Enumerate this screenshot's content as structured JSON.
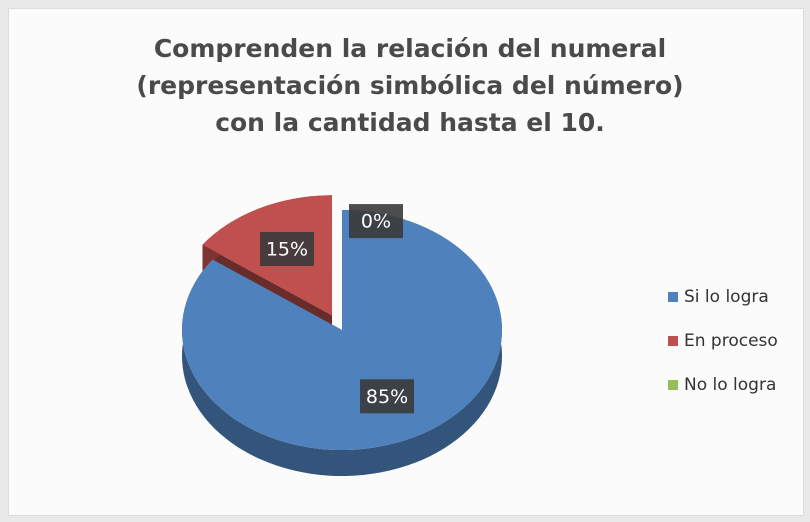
{
  "chart_data": {
    "type": "pie",
    "title": "Comprenden la relación del numeral (representación simbólica del número) con la cantidad hasta el 10.",
    "categories": [
      "Si lo logra",
      "En proceso",
      "No lo logra"
    ],
    "values": [
      85,
      15,
      0
    ],
    "value_labels": [
      "85%",
      "15%",
      "0%"
    ],
    "colors": [
      "#4f81bd",
      "#c0504d",
      "#9bbb59"
    ],
    "legend": "right"
  }
}
